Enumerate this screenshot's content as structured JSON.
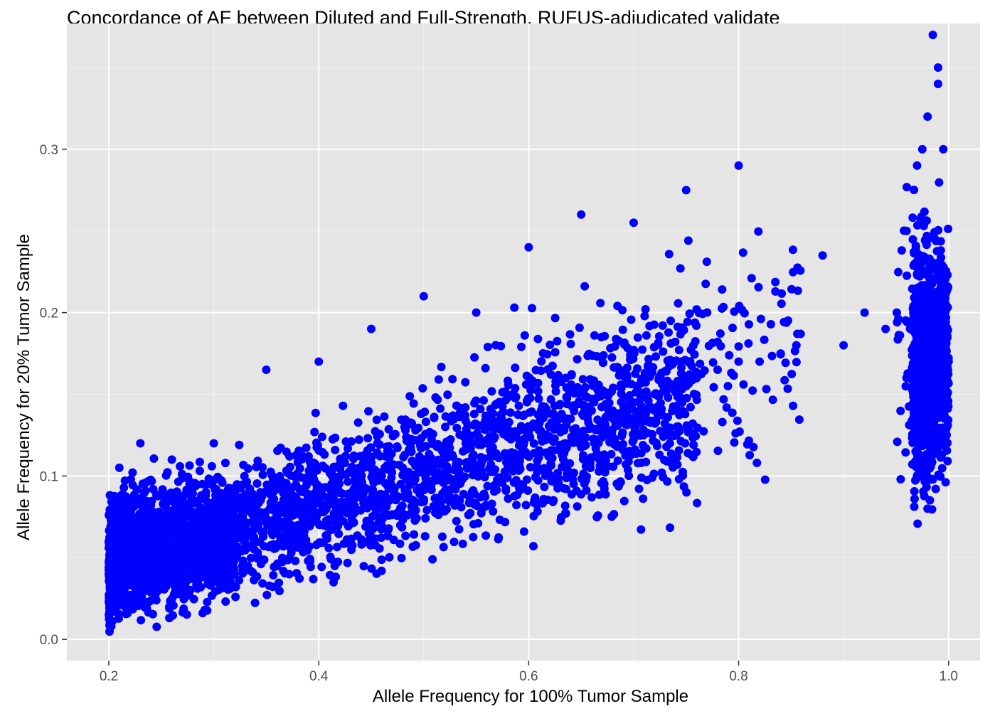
{
  "chart_data": {
    "type": "scatter",
    "title": "Concordance of AF between Diluted and Full-Strength, RUFUS-adjudicated validate",
    "xlabel": "Allele Frequency for 100% Tumor Sample",
    "ylabel": "Allele Frequency for 20% Tumor Sample",
    "xlim": [
      0.16,
      1.03
    ],
    "ylim": [
      -0.013,
      0.377
    ],
    "x_ticks": [
      "0.2",
      "0.4",
      "0.6",
      "0.8",
      "1.0"
    ],
    "y_ticks": [
      "0.0",
      "0.1",
      "0.2",
      "0.3"
    ],
    "grid": true,
    "point_color": "#0000ff",
    "panel_color": "#e5e5e5",
    "series": [
      {
        "x": [
          0.2,
          0.205,
          0.21,
          0.215,
          0.22,
          0.225,
          0.23,
          0.24,
          0.25,
          0.26,
          0.28,
          0.3,
          0.32,
          0.34,
          0.36,
          0.38,
          0.4,
          0.42,
          0.44,
          0.46,
          0.48,
          0.5,
          0.52,
          0.54,
          0.56,
          0.58,
          0.6,
          0.62,
          0.64,
          0.66,
          0.68,
          0.7,
          0.72,
          0.74,
          0.76,
          0.78,
          0.8,
          0.82,
          0.84,
          0.855,
          0.88,
          0.9,
          0.92,
          0.94,
          0.96,
          0.97,
          0.98,
          0.985,
          0.99,
          0.995,
          1.0,
          0.21,
          0.23,
          0.26,
          0.3,
          0.35,
          0.4,
          0.45,
          0.5,
          0.55,
          0.6,
          0.65,
          0.7,
          0.75,
          0.8,
          0.985,
          0.99,
          0.99,
          0.98,
          0.975,
          0.97,
          0.995,
          0.96,
          0.97,
          0.98
        ],
        "y": [
          0.06,
          0.05,
          0.07,
          0.045,
          0.065,
          0.055,
          0.06,
          0.055,
          0.06,
          0.065,
          0.065,
          0.07,
          0.075,
          0.075,
          0.08,
          0.085,
          0.085,
          0.09,
          0.095,
          0.1,
          0.105,
          0.11,
          0.115,
          0.12,
          0.12,
          0.125,
          0.125,
          0.13,
          0.135,
          0.14,
          0.14,
          0.145,
          0.15,
          0.155,
          0.16,
          0.165,
          0.17,
          0.17,
          0.175,
          0.18,
          0.235,
          0.18,
          0.2,
          0.19,
          0.16,
          0.17,
          0.175,
          0.18,
          0.17,
          0.165,
          0.17,
          0.105,
          0.12,
          0.11,
          0.12,
          0.165,
          0.17,
          0.19,
          0.21,
          0.2,
          0.24,
          0.26,
          0.255,
          0.275,
          0.29,
          0.37,
          0.35,
          0.34,
          0.32,
          0.3,
          0.29,
          0.3,
          0.25,
          0.1,
          0.08
        ]
      }
    ]
  }
}
